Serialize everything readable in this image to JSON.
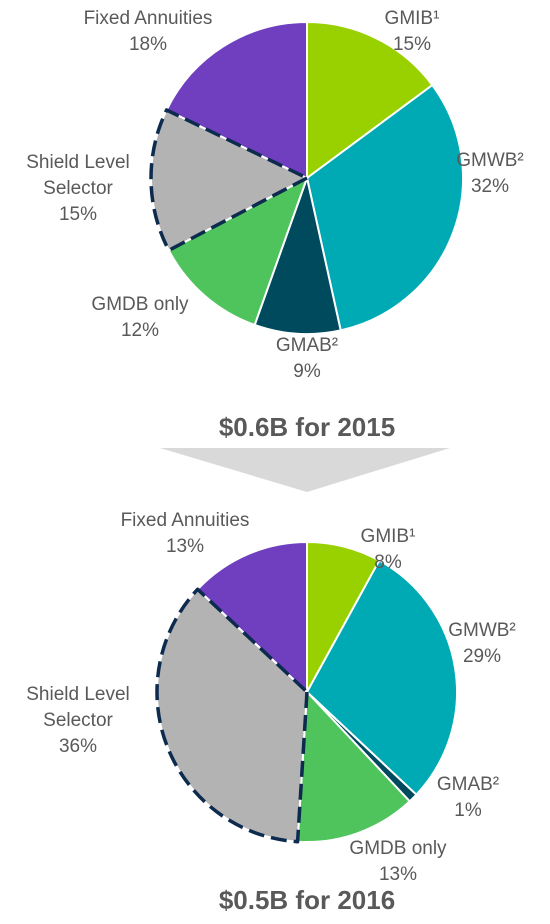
{
  "chart_data": [
    {
      "type": "pie",
      "title": "$0.6B for 2015",
      "categories": [
        "GMIB¹",
        "GMWB²",
        "GMAB²",
        "GMDB only",
        "Shield Level Selector",
        "Fixed Annuities"
      ],
      "values": [
        15,
        32,
        9,
        12,
        15,
        18
      ],
      "value_labels": [
        "15%",
        "32%",
        "9%",
        "12%",
        "15%",
        "18%"
      ],
      "colors": [
        "#99d100",
        "#00aab4",
        "#004a5e",
        "#4fc45c",
        "#b3b3b3",
        "#6f3fbf"
      ],
      "dashed": [
        false,
        false,
        false,
        false,
        true,
        false
      ]
    },
    {
      "type": "pie",
      "title": "$0.5B for 2016",
      "categories": [
        "GMIB¹",
        "GMWB²",
        "GMAB²",
        "GMDB only",
        "Shield Level Selector",
        "Fixed Annuities"
      ],
      "values": [
        8,
        29,
        1,
        13,
        36,
        13
      ],
      "value_labels": [
        "8%",
        "29%",
        "1%",
        "13%",
        "36%",
        "13%"
      ],
      "colors": [
        "#99d100",
        "#00aab4",
        "#004a5e",
        "#4fc45c",
        "#b3b3b3",
        "#6f3fbf"
      ],
      "dashed": [
        false,
        false,
        false,
        false,
        true,
        false
      ]
    }
  ]
}
